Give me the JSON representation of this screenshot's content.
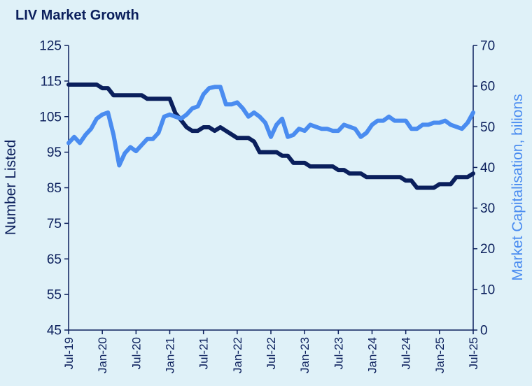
{
  "chart_data": {
    "type": "line",
    "title": "LIV Market Growth",
    "y_left": {
      "label": "Number  Listed",
      "ylim": [
        45,
        125
      ],
      "ticks": [
        45,
        55,
        65,
        75,
        85,
        95,
        105,
        115,
        125
      ]
    },
    "y_right": {
      "label": "Market Capitalisation, bilions",
      "ylim": [
        0,
        70
      ],
      "ticks": [
        0,
        10,
        20,
        30,
        40,
        50,
        60,
        70
      ]
    },
    "x_tick_labels": [
      "Jul-19",
      "Jan-20",
      "Jul-20",
      "Jan-21",
      "Jul-21",
      "Jan-22",
      "Jul-22",
      "Jan-23",
      "Jul-23",
      "Jan-24",
      "Jul-24",
      "Jan-25",
      "Jul-25"
    ],
    "x_start_label": "Jul-19",
    "x_months_total": 72,
    "grid": false,
    "legend": "none",
    "series": [
      {
        "axis": "left",
        "color": "#0a1f5c",
        "values": [
          114,
          114,
          114,
          114,
          114,
          114,
          113,
          113,
          111,
          111,
          111,
          111,
          111,
          111,
          110,
          110,
          110,
          110,
          110,
          106,
          104,
          102,
          101,
          101,
          102,
          102,
          101,
          102,
          101,
          100,
          99,
          99,
          99,
          98,
          95,
          95,
          95,
          95,
          94,
          94,
          92,
          92,
          92,
          91,
          91,
          91,
          91,
          91,
          90,
          90,
          89,
          89,
          89,
          88,
          88,
          88,
          88,
          88,
          88,
          88,
          87,
          87,
          85,
          85,
          85,
          85,
          86,
          86,
          86,
          88,
          88,
          88,
          89
        ]
      },
      {
        "axis": "right",
        "color": "#4a8cf0",
        "values": [
          46,
          47.5,
          46,
          48,
          49.5,
          52,
          53,
          53.5,
          48,
          40.5,
          43.5,
          45,
          44,
          45.5,
          47,
          47,
          48.5,
          52.5,
          53,
          52.5,
          52,
          53,
          54.5,
          55,
          58,
          59.5,
          59.8,
          59.8,
          55.5,
          55.5,
          56,
          54.5,
          52.5,
          53.5,
          52.5,
          51,
          47.5,
          50.5,
          52,
          47.5,
          48,
          49.5,
          49,
          50.5,
          50,
          49.5,
          49.5,
          49,
          49,
          50.5,
          50,
          49.5,
          47.5,
          48.5,
          50.5,
          51.5,
          51.5,
          52.5,
          51.5,
          51.5,
          51.5,
          49.5,
          49.5,
          50.5,
          50.5,
          51,
          51,
          51.5,
          50.5,
          50,
          49.5,
          51,
          53.5
        ]
      }
    ]
  }
}
